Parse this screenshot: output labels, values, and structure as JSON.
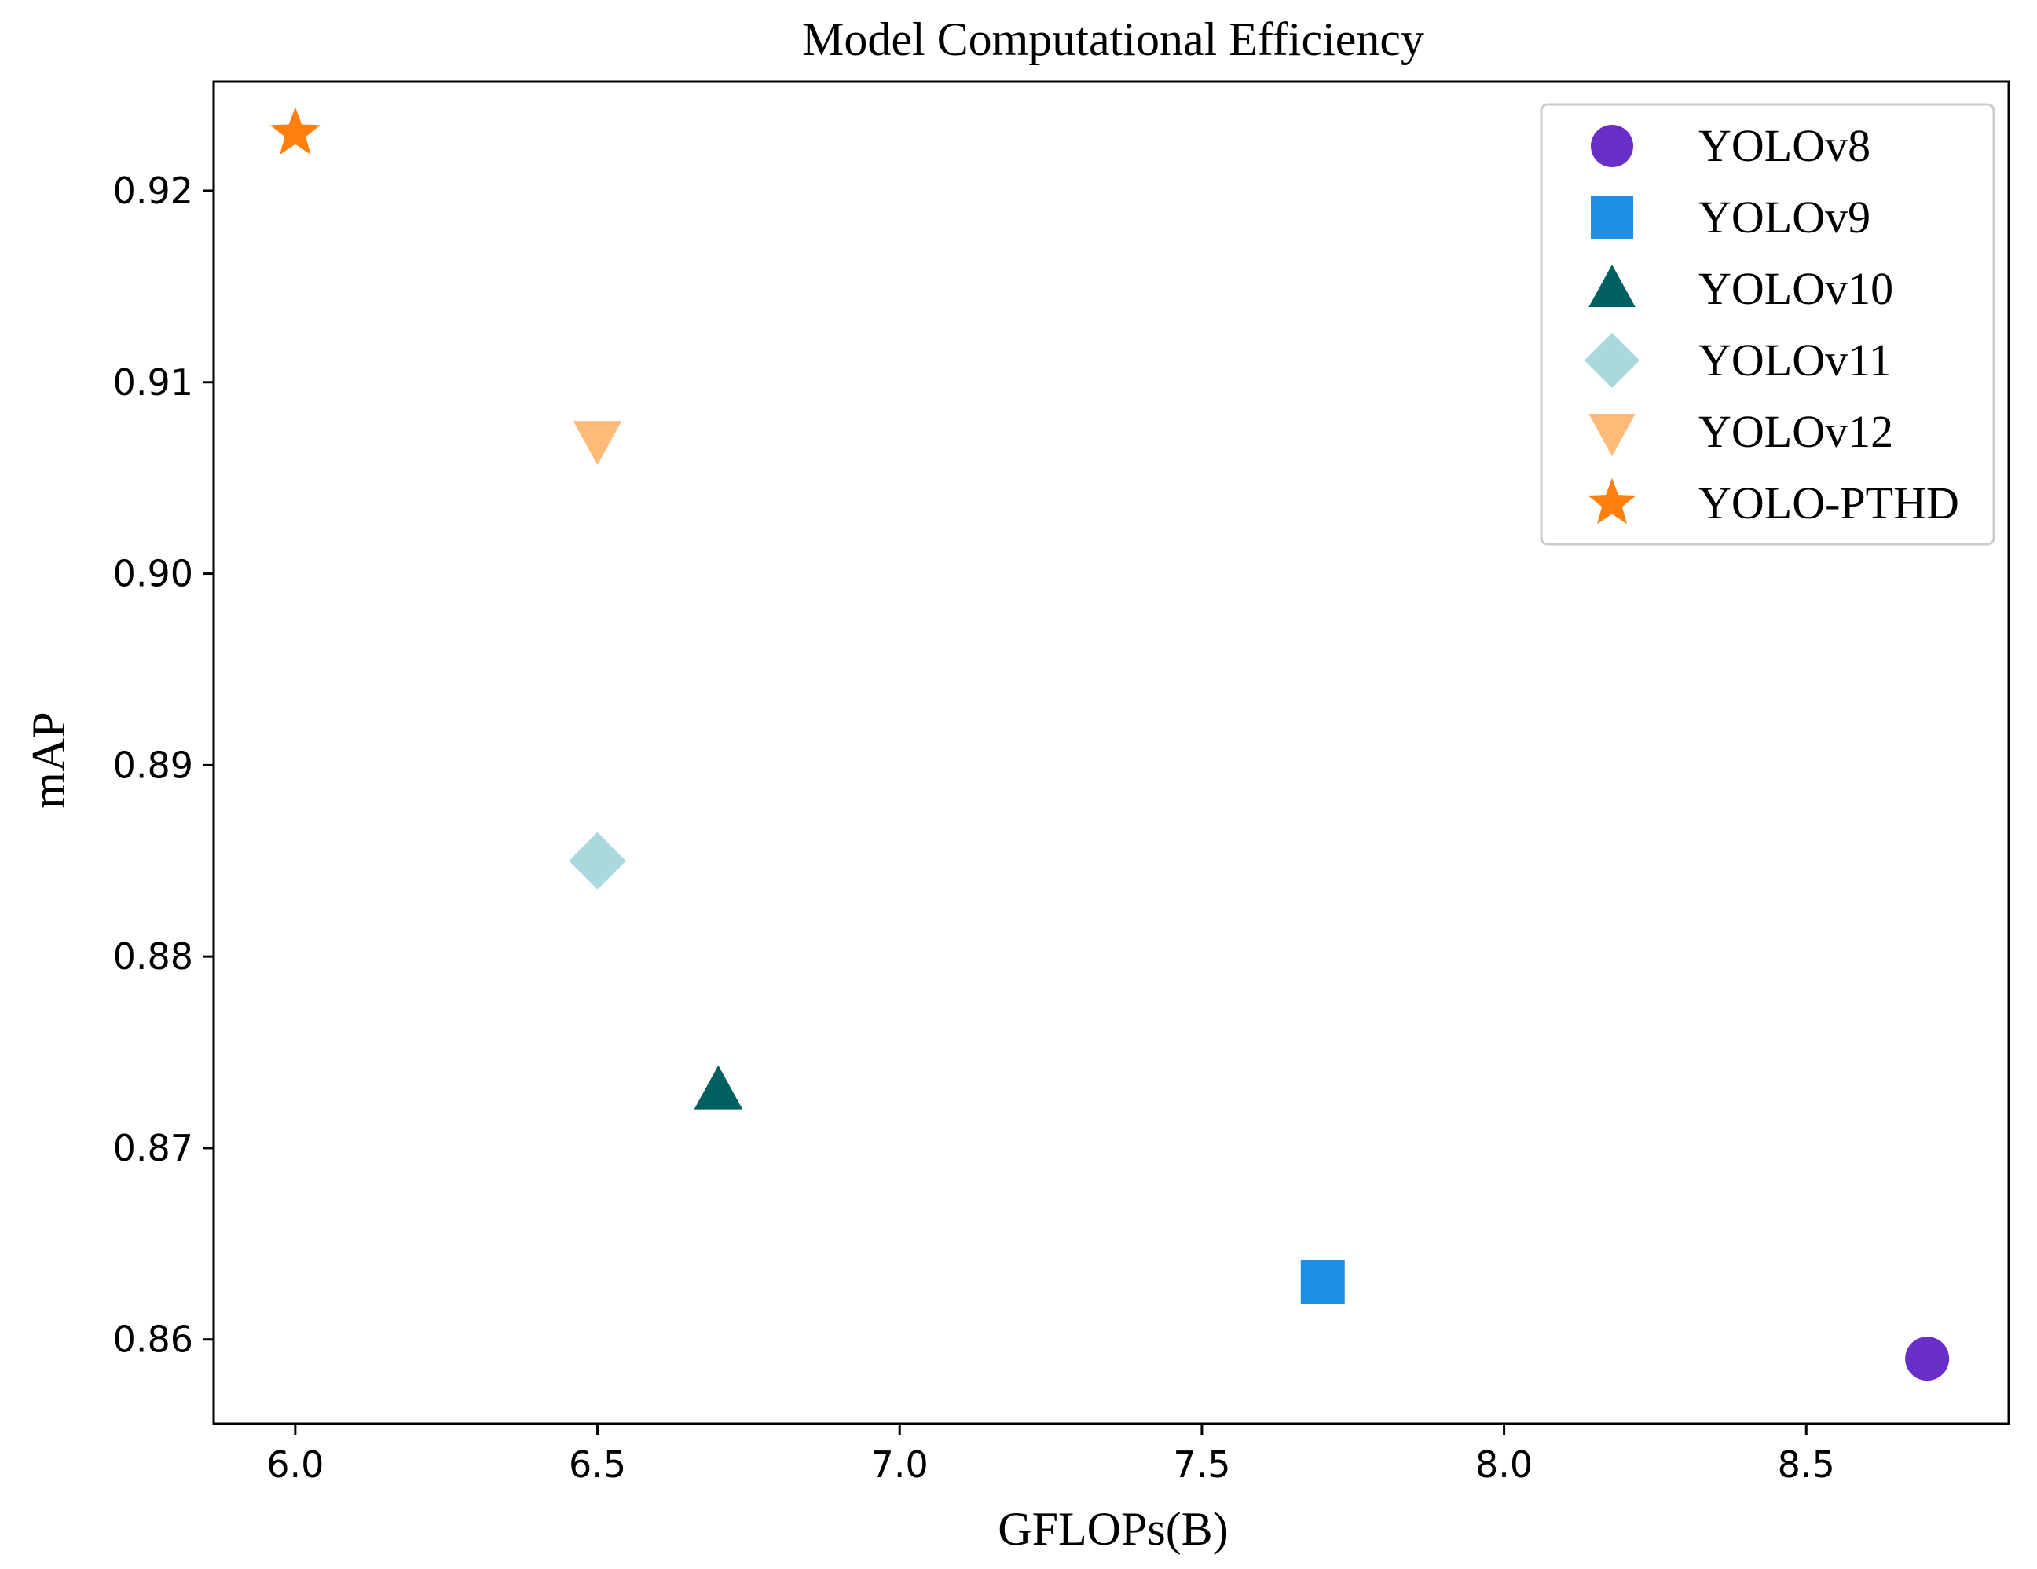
{
  "chart_data": {
    "type": "scatter",
    "title": "Model Computational Efficiency",
    "xlabel": "GFLOPs(B)",
    "ylabel": "mAP",
    "xlim": [
      5.865,
      8.835
    ],
    "ylim": [
      0.8556,
      0.9257
    ],
    "xticks": [
      6.0,
      6.5,
      7.0,
      7.5,
      8.0,
      8.5
    ],
    "xtick_labels": [
      "6.0",
      "6.5",
      "7.0",
      "7.5",
      "8.0",
      "8.5"
    ],
    "yticks": [
      0.86,
      0.87,
      0.88,
      0.89,
      0.9,
      0.91,
      0.92
    ],
    "ytick_labels": [
      "0.86",
      "0.87",
      "0.88",
      "0.89",
      "0.90",
      "0.91",
      "0.92"
    ],
    "grid": false,
    "legend_position": "top-right",
    "series": [
      {
        "name": "YOLOv8",
        "marker": "circle",
        "color": "#6a2ec8",
        "x": 8.7,
        "y": 0.859
      },
      {
        "name": "YOLOv9",
        "marker": "square",
        "color": "#1f8fe6",
        "x": 7.7,
        "y": 0.863
      },
      {
        "name": "YOLOv10",
        "marker": "triangle-up",
        "color": "#005f5f",
        "x": 6.7,
        "y": 0.873
      },
      {
        "name": "YOLOv11",
        "marker": "diamond",
        "color": "#a9d9dc",
        "x": 6.5,
        "y": 0.885
      },
      {
        "name": "YOLOv12",
        "marker": "triangle-down",
        "color": "#ffb978",
        "x": 6.5,
        "y": 0.907
      },
      {
        "name": "YOLO-PTHD",
        "marker": "star",
        "color": "#ff7f0e",
        "x": 6.0,
        "y": 0.923
      }
    ]
  }
}
